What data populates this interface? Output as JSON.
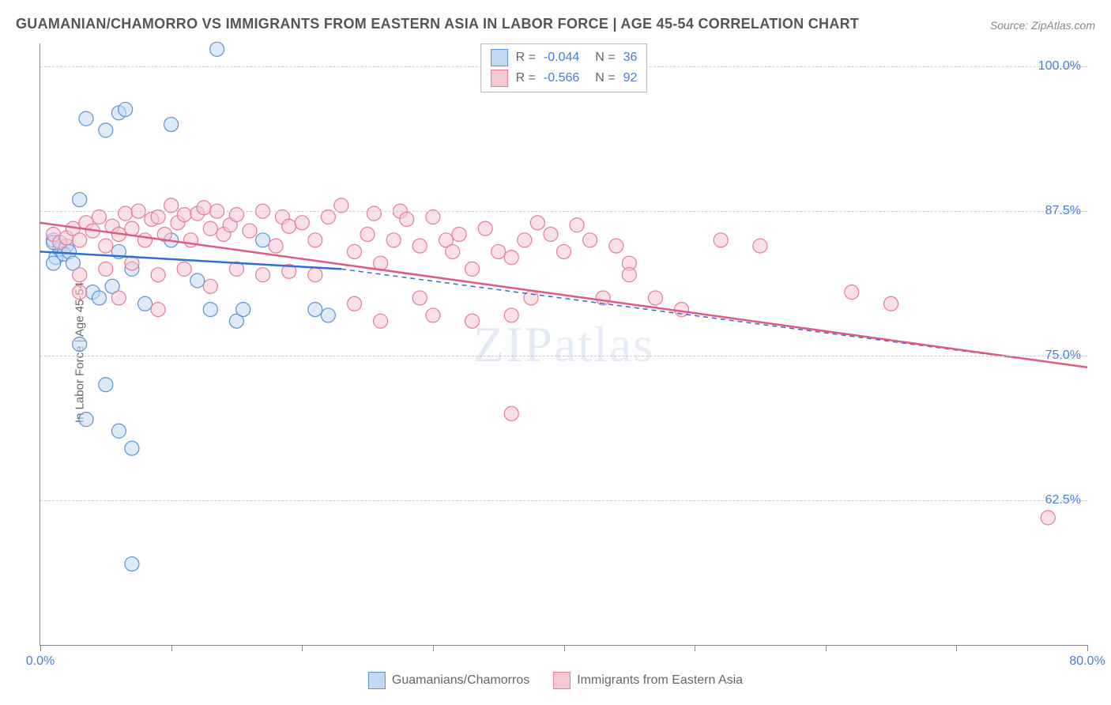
{
  "title": "GUAMANIAN/CHAMORRO VS IMMIGRANTS FROM EASTERN ASIA IN LABOR FORCE | AGE 45-54 CORRELATION CHART",
  "source": "Source: ZipAtlas.com",
  "y_axis_label": "In Labor Force | Age 45-54",
  "watermark": "ZIPatlas",
  "chart": {
    "type": "scatter",
    "xlim": [
      0,
      80
    ],
    "ylim": [
      50,
      102
    ],
    "x_ticks": [
      0,
      10,
      20,
      30,
      40,
      50,
      60,
      70,
      80
    ],
    "x_tick_labels": {
      "0": "0.0%",
      "80": "80.0%"
    },
    "y_gridlines": [
      62.5,
      75.0,
      87.5,
      100.0
    ],
    "y_tick_labels": [
      "62.5%",
      "75.0%",
      "87.5%",
      "100.0%"
    ],
    "grid_color": "#cccccc",
    "axis_color": "#888888",
    "background_color": "#ffffff",
    "marker_radius": 9,
    "marker_opacity": 0.55,
    "series": [
      {
        "name": "Guamanians/Chamorros",
        "color_fill": "#c3d9f2",
        "color_stroke": "#5a93d6",
        "R": "-0.044",
        "N": "36",
        "trend_line": {
          "x1": 0,
          "y1": 84.0,
          "x2_solid": 23,
          "y2_solid": 82.5,
          "x2": 80,
          "y2": 74.0,
          "stroke": "#2e6fd1",
          "width": 2.5
        },
        "points": [
          [
            1,
            85
          ],
          [
            1.2,
            83.5
          ],
          [
            1.5,
            84.2
          ],
          [
            1,
            83
          ],
          [
            2,
            84.5
          ],
          [
            1.8,
            83.8
          ],
          [
            2.2,
            84
          ],
          [
            1,
            84.8
          ],
          [
            2.5,
            83
          ],
          [
            3,
            88.5
          ],
          [
            3.5,
            95.5
          ],
          [
            5,
            94.5
          ],
          [
            6,
            96
          ],
          [
            6.5,
            96.3
          ],
          [
            10,
            95
          ],
          [
            13.5,
            101.5
          ],
          [
            4,
            80.5
          ],
          [
            5.5,
            81
          ],
          [
            7,
            82.5
          ],
          [
            3,
            76
          ],
          [
            4.5,
            80
          ],
          [
            6,
            84
          ],
          [
            8,
            79.5
          ],
          [
            5,
            72.5
          ],
          [
            6,
            68.5
          ],
          [
            7,
            67
          ],
          [
            10,
            85
          ],
          [
            12,
            81.5
          ],
          [
            13,
            79
          ],
          [
            15,
            78
          ],
          [
            15.5,
            79
          ],
          [
            17,
            85
          ],
          [
            21,
            79
          ],
          [
            22,
            78.5
          ],
          [
            3.5,
            69.5
          ],
          [
            7,
            57
          ]
        ]
      },
      {
        "name": "Immigrants from Eastern Asia",
        "color_fill": "#f6c8d3",
        "color_stroke": "#e77a9a",
        "R": "-0.566",
        "N": "92",
        "trend_line": {
          "x1": 0,
          "y1": 86.5,
          "x2": 80,
          "y2": 74.0,
          "stroke": "#e05a83",
          "width": 2.5
        },
        "points": [
          [
            1,
            85.5
          ],
          [
            1.5,
            84.8
          ],
          [
            2,
            85.2
          ],
          [
            2.5,
            86
          ],
          [
            3,
            85
          ],
          [
            3.5,
            86.5
          ],
          [
            4,
            85.8
          ],
          [
            4.5,
            87
          ],
          [
            5,
            84.5
          ],
          [
            5.5,
            86.2
          ],
          [
            6,
            85.5
          ],
          [
            6.5,
            87.3
          ],
          [
            7,
            86
          ],
          [
            7.5,
            87.5
          ],
          [
            8,
            85
          ],
          [
            8.5,
            86.8
          ],
          [
            9,
            87
          ],
          [
            9.5,
            85.5
          ],
          [
            10,
            88
          ],
          [
            10.5,
            86.5
          ],
          [
            11,
            87.2
          ],
          [
            11.5,
            85
          ],
          [
            12,
            87.3
          ],
          [
            12.5,
            87.8
          ],
          [
            13,
            86
          ],
          [
            13.5,
            87.5
          ],
          [
            14,
            85.5
          ],
          [
            14.5,
            86.3
          ],
          [
            15,
            87.2
          ],
          [
            16,
            85.8
          ],
          [
            17,
            87.5
          ],
          [
            18,
            84.5
          ],
          [
            18.5,
            87
          ],
          [
            19,
            86.2
          ],
          [
            20,
            86.5
          ],
          [
            21,
            85
          ],
          [
            22,
            87
          ],
          [
            23,
            88
          ],
          [
            24,
            84
          ],
          [
            25,
            85.5
          ],
          [
            25.5,
            87.3
          ],
          [
            26,
            83
          ],
          [
            27,
            85
          ],
          [
            27.5,
            87.5
          ],
          [
            28,
            86.8
          ],
          [
            29,
            84.5
          ],
          [
            30,
            87
          ],
          [
            31,
            85
          ],
          [
            31.5,
            84
          ],
          [
            32,
            85.5
          ],
          [
            33,
            82.5
          ],
          [
            34,
            86
          ],
          [
            35,
            84
          ],
          [
            36,
            83.5
          ],
          [
            37,
            85
          ],
          [
            37.5,
            80
          ],
          [
            38,
            86.5
          ],
          [
            39,
            85.5
          ],
          [
            40,
            84
          ],
          [
            41,
            86.3
          ],
          [
            42,
            85
          ],
          [
            43,
            80
          ],
          [
            44,
            84.5
          ],
          [
            45,
            83
          ],
          [
            3,
            82
          ],
          [
            5,
            82.5
          ],
          [
            7,
            83
          ],
          [
            9,
            82
          ],
          [
            11,
            82.5
          ],
          [
            13,
            81
          ],
          [
            15,
            82.5
          ],
          [
            17,
            82
          ],
          [
            19,
            82.3
          ],
          [
            21,
            82
          ],
          [
            3,
            80.5
          ],
          [
            6,
            80
          ],
          [
            9,
            79
          ],
          [
            24,
            79.5
          ],
          [
            26,
            78
          ],
          [
            29,
            80
          ],
          [
            30,
            78.5
          ],
          [
            33,
            78
          ],
          [
            36,
            78.5
          ],
          [
            45,
            82
          ],
          [
            47,
            80
          ],
          [
            52,
            85
          ],
          [
            55,
            84.5
          ],
          [
            36,
            70
          ],
          [
            49,
            79
          ],
          [
            62,
            80.5
          ],
          [
            65,
            79.5
          ],
          [
            77,
            61
          ]
        ]
      }
    ]
  },
  "legend_top": [
    {
      "swatch_fill": "#c3d9f2",
      "swatch_stroke": "#5a93d6",
      "r_label": "R =",
      "r_value": "-0.044",
      "n_label": "N =",
      "n_value": "36"
    },
    {
      "swatch_fill": "#f6c8d3",
      "swatch_stroke": "#e77a9a",
      "r_label": "R =",
      "r_value": "-0.566",
      "n_label": "N =",
      "n_value": "92"
    }
  ],
  "legend_bottom": [
    {
      "swatch_fill": "#c3d9f2",
      "swatch_stroke": "#5a93d6",
      "label": "Guamanians/Chamorros"
    },
    {
      "swatch_fill": "#f6c8d3",
      "swatch_stroke": "#e77a9a",
      "label": "Immigrants from Eastern Asia"
    }
  ]
}
